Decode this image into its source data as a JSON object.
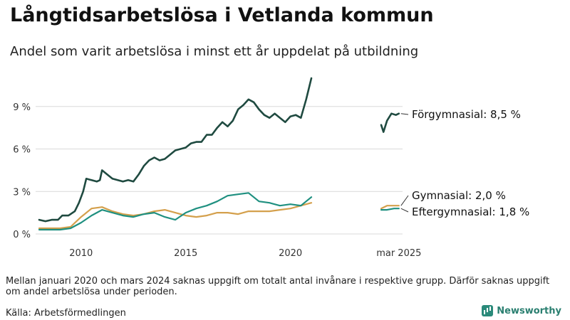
{
  "header": {
    "title": "Långtidsarbetslösa i Vetlanda kommun",
    "subtitle": "Andel som varit arbetslösa i minst ett år uppdelat på utbildning"
  },
  "footer": {
    "note": "Mellan januari 2020 och mars 2024 saknas uppgift om totalt antal invånare i respektive grupp. Därför saknas uppgift om andel arbetslösa under perioden.",
    "source": "Källa: Arbetsförmedlingen",
    "brand": "Newsworthy"
  },
  "colors": {
    "forgymnasial": "#1f4a40",
    "gymnasial": "#d4a04c",
    "eftergymnasial": "#1f9080",
    "grid": "#d9d9d9",
    "brand": "#2a8a7a"
  },
  "chart_data": {
    "type": "line",
    "title": "Långtidsarbetslösa i Vetlanda kommun",
    "subtitle": "Andel som varit arbetslösa i minst ett år uppdelat på utbildning",
    "y_unit": "%",
    "ylim": [
      0,
      11.5
    ],
    "y_ticks": [
      {
        "value": 0,
        "label": "0 %"
      },
      {
        "value": 3,
        "label": "3 %"
      },
      {
        "value": 6,
        "label": "6 %"
      },
      {
        "value": 9,
        "label": "9 %"
      }
    ],
    "x_ticks": [
      {
        "label": "2010",
        "segment": 0,
        "x": 2010
      },
      {
        "label": "2015",
        "segment": 0,
        "x": 2015
      },
      {
        "label": "2020",
        "segment": 0,
        "x": 2020
      },
      {
        "label": "mar 2025",
        "segment": 1,
        "x": 2025.17
      }
    ],
    "grid": true,
    "segments": [
      {
        "xlim": [
          2008.0,
          2021.0
        ]
      },
      {
        "xlim": [
          2024.17,
          2025.5
        ]
      }
    ],
    "series": [
      {
        "name": "Förgymnasial",
        "end_label": "Förgymnasial: 8,5 %",
        "color_key": "forgymnasial",
        "segments": [
          [
            [
              2008.0,
              1.0
            ],
            [
              2008.3,
              0.9
            ],
            [
              2008.6,
              1.0
            ],
            [
              2008.9,
              1.0
            ],
            [
              2009.1,
              1.3
            ],
            [
              2009.4,
              1.3
            ],
            [
              2009.7,
              1.6
            ],
            [
              2009.9,
              2.2
            ],
            [
              2010.1,
              3.0
            ],
            [
              2010.25,
              3.9
            ],
            [
              2010.5,
              3.8
            ],
            [
              2010.75,
              3.7
            ],
            [
              2010.9,
              3.8
            ],
            [
              2011.0,
              4.5
            ],
            [
              2011.25,
              4.2
            ],
            [
              2011.5,
              3.9
            ],
            [
              2011.75,
              3.8
            ],
            [
              2012.0,
              3.7
            ],
            [
              2012.25,
              3.8
            ],
            [
              2012.5,
              3.7
            ],
            [
              2012.75,
              4.2
            ],
            [
              2013.0,
              4.8
            ],
            [
              2013.25,
              5.2
            ],
            [
              2013.5,
              5.4
            ],
            [
              2013.75,
              5.2
            ],
            [
              2014.0,
              5.3
            ],
            [
              2014.25,
              5.6
            ],
            [
              2014.5,
              5.9
            ],
            [
              2014.75,
              6.0
            ],
            [
              2015.0,
              6.1
            ],
            [
              2015.25,
              6.4
            ],
            [
              2015.5,
              6.5
            ],
            [
              2015.75,
              6.5
            ],
            [
              2016.0,
              7.0
            ],
            [
              2016.25,
              7.0
            ],
            [
              2016.5,
              7.5
            ],
            [
              2016.75,
              7.9
            ],
            [
              2017.0,
              7.6
            ],
            [
              2017.25,
              8.0
            ],
            [
              2017.5,
              8.8
            ],
            [
              2017.75,
              9.1
            ],
            [
              2018.0,
              9.5
            ],
            [
              2018.25,
              9.3
            ],
            [
              2018.5,
              8.8
            ],
            [
              2018.75,
              8.4
            ],
            [
              2019.0,
              8.2
            ],
            [
              2019.25,
              8.5
            ],
            [
              2019.5,
              8.2
            ],
            [
              2019.75,
              7.9
            ],
            [
              2020.0,
              8.3
            ],
            [
              2020.25,
              8.4
            ],
            [
              2020.5,
              8.2
            ],
            [
              2020.75,
              9.5
            ],
            [
              2021.0,
              11.0
            ]
          ],
          [
            [
              2024.17,
              7.7
            ],
            [
              2024.3,
              7.2
            ],
            [
              2024.5,
              8.0
            ],
            [
              2024.75,
              8.5
            ],
            [
              2025.0,
              8.4
            ],
            [
              2025.17,
              8.5
            ]
          ]
        ]
      },
      {
        "name": "Gymnasial",
        "end_label": "Gymnasial: 2,0 %",
        "color_key": "gymnasial",
        "segments": [
          [
            [
              2008.0,
              0.4
            ],
            [
              2008.5,
              0.4
            ],
            [
              2009.0,
              0.4
            ],
            [
              2009.5,
              0.5
            ],
            [
              2010.0,
              1.2
            ],
            [
              2010.5,
              1.8
            ],
            [
              2011.0,
              1.9
            ],
            [
              2011.5,
              1.6
            ],
            [
              2012.0,
              1.4
            ],
            [
              2012.5,
              1.3
            ],
            [
              2013.0,
              1.4
            ],
            [
              2013.5,
              1.6
            ],
            [
              2014.0,
              1.7
            ],
            [
              2014.5,
              1.5
            ],
            [
              2015.0,
              1.3
            ],
            [
              2015.5,
              1.2
            ],
            [
              2016.0,
              1.3
            ],
            [
              2016.5,
              1.5
            ],
            [
              2017.0,
              1.5
            ],
            [
              2017.5,
              1.4
            ],
            [
              2018.0,
              1.6
            ],
            [
              2018.5,
              1.6
            ],
            [
              2019.0,
              1.6
            ],
            [
              2019.5,
              1.7
            ],
            [
              2020.0,
              1.8
            ],
            [
              2020.5,
              2.0
            ],
            [
              2021.0,
              2.2
            ]
          ],
          [
            [
              2024.17,
              1.8
            ],
            [
              2024.5,
              2.0
            ],
            [
              2024.9,
              2.0
            ],
            [
              2025.17,
              2.0
            ]
          ]
        ]
      },
      {
        "name": "Eftergymnasial",
        "end_label": "Eftergymnasial: 1,8 %",
        "color_key": "eftergymnasial",
        "segments": [
          [
            [
              2008.0,
              0.3
            ],
            [
              2008.5,
              0.3
            ],
            [
              2009.0,
              0.3
            ],
            [
              2009.5,
              0.4
            ],
            [
              2010.0,
              0.8
            ],
            [
              2010.5,
              1.3
            ],
            [
              2011.0,
              1.7
            ],
            [
              2011.5,
              1.5
            ],
            [
              2012.0,
              1.3
            ],
            [
              2012.5,
              1.2
            ],
            [
              2013.0,
              1.4
            ],
            [
              2013.5,
              1.5
            ],
            [
              2014.0,
              1.2
            ],
            [
              2014.5,
              1.0
            ],
            [
              2015.0,
              1.5
            ],
            [
              2015.5,
              1.8
            ],
            [
              2016.0,
              2.0
            ],
            [
              2016.5,
              2.3
            ],
            [
              2017.0,
              2.7
            ],
            [
              2017.5,
              2.8
            ],
            [
              2018.0,
              2.9
            ],
            [
              2018.5,
              2.3
            ],
            [
              2019.0,
              2.2
            ],
            [
              2019.5,
              2.0
            ],
            [
              2020.0,
              2.1
            ],
            [
              2020.5,
              2.0
            ],
            [
              2021.0,
              2.6
            ]
          ],
          [
            [
              2024.17,
              1.7
            ],
            [
              2024.5,
              1.7
            ],
            [
              2024.9,
              1.8
            ],
            [
              2025.17,
              1.8
            ]
          ]
        ]
      }
    ]
  }
}
